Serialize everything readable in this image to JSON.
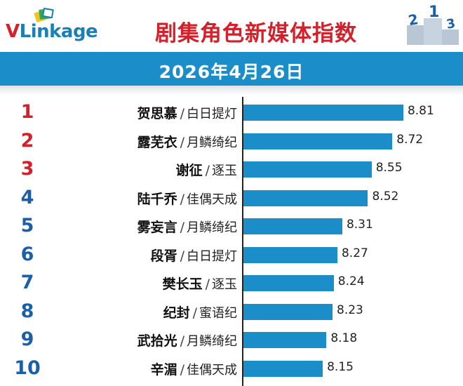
{
  "brand": {
    "logo_v": "V",
    "logo_rest": "Linkage"
  },
  "title": "剧集角色新媒体指数",
  "date": "2026年4月26日",
  "podium_labels": [
    "2",
    "1",
    "3"
  ],
  "colors": {
    "accent_red": "#d4202a",
    "rank_blue": "#1a5fa8",
    "bar_blue": "#1b8ec9"
  },
  "chart_data": {
    "type": "bar",
    "orientation": "horizontal",
    "title": "剧集角色新媒体指数",
    "subtitle": "2026年4月26日",
    "value_axis_min": 7.5,
    "categories": [
      {
        "rank": "1",
        "name": "贺思慕",
        "drama": "白日提灯"
      },
      {
        "rank": "2",
        "name": "露芜衣",
        "drama": "月鳞绮纪"
      },
      {
        "rank": "3",
        "name": "谢征",
        "drama": "逐玉"
      },
      {
        "rank": "4",
        "name": "陆千乔",
        "drama": "佳偶天成"
      },
      {
        "rank": "5",
        "name": "雾妄言",
        "drama": "月鳞绮纪"
      },
      {
        "rank": "6",
        "name": "段胥",
        "drama": "白日提灯"
      },
      {
        "rank": "7",
        "name": "樊长玉",
        "drama": "逐玉"
      },
      {
        "rank": "8",
        "name": "纪封",
        "drama": "蜜语纪"
      },
      {
        "rank": "9",
        "name": "武拾光",
        "drama": "月鳞绮纪"
      },
      {
        "rank": "10",
        "name": "辛湄",
        "drama": "佳偶天成"
      }
    ],
    "values": [
      "8.81",
      "8.72",
      "8.55",
      "8.52",
      "8.31",
      "8.27",
      "8.24",
      "8.23",
      "8.18",
      "8.15"
    ]
  }
}
